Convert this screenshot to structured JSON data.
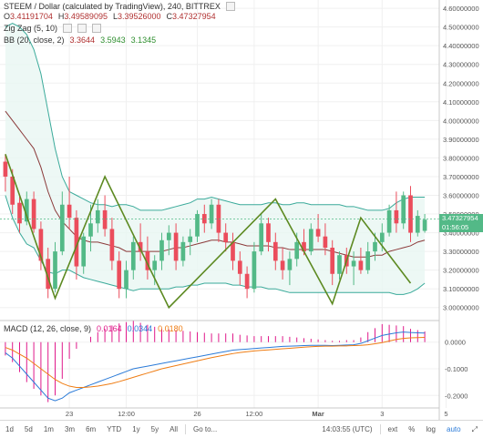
{
  "header": {
    "symbol_title": "STEEM / Dollar (calculated by TradingView), 240, BITTREX",
    "ohlc": {
      "o_label": "O",
      "o_value": "3.41191704",
      "h_label": "H",
      "h_value": "3.49589095",
      "l_label": "L",
      "l_value": "3.39526000",
      "c_label": "C",
      "c_value": "3.47327954"
    }
  },
  "indicators": {
    "zigzag": {
      "label": "Zig Zag (5, 10)"
    },
    "bb": {
      "label": "BB (20, close, 2)",
      "basis": "3.3644",
      "upper": "3.5943",
      "lower": "3.1345"
    },
    "macd": {
      "label": "MACD (12, 26, close, 9)",
      "hist": "0.0164",
      "macd": "0.0344",
      "signal": "0.0180"
    }
  },
  "price_axis": {
    "ticks": [
      "4.60000000",
      "4.50000000",
      "4.40000000",
      "4.30000000",
      "4.20000000",
      "4.10000000",
      "4.00000000",
      "3.90000000",
      "3.80000000",
      "3.70000000",
      "3.60000000",
      "3.50000000",
      "3.40000000",
      "3.30000000",
      "3.20000000",
      "3.10000000",
      "3.00000000"
    ],
    "last_price": "3.47327954",
    "countdown": "01:56:05"
  },
  "macd_axis": {
    "ticks": [
      "0.0000",
      "-0.1000",
      "-0.2000"
    ]
  },
  "time_axis": {
    "labels": [
      {
        "text": "23",
        "t": 9
      },
      {
        "text": "12:00",
        "t": 17
      },
      {
        "text": "26",
        "t": 27
      },
      {
        "text": "12:00",
        "t": 35
      },
      {
        "text": "Mar",
        "t": 44
      },
      {
        "text": "3",
        "t": 53
      },
      {
        "text": "5",
        "t": 62
      }
    ]
  },
  "toolbar": {
    "ranges": [
      "1d",
      "5d",
      "1m",
      "3m",
      "6m",
      "YTD",
      "1y",
      "5y",
      "All"
    ],
    "goto": "Go to...",
    "time": "14:03:55 (UTC)",
    "ext": "ext",
    "percent": "%",
    "log": "log",
    "auto": "auto"
  },
  "colors": {
    "up": "#53b987",
    "down": "#eb4d5c",
    "bb_band": "#3aaa9a",
    "bb_basis": "#8b3a3a",
    "bb_fill": "#e8f6f3",
    "zigzag": "#5d8a22",
    "macd": "#2b7bd8",
    "signal": "#ef7d14",
    "hist": "#e0198a"
  },
  "chart_data": {
    "type": "candlestick",
    "price_range": [
      2.95,
      4.62
    ],
    "candles": [
      [
        3.78,
        3.82,
        3.62,
        3.7
      ],
      [
        3.7,
        3.74,
        3.5,
        3.55
      ],
      [
        3.56,
        3.6,
        3.4,
        3.45
      ],
      [
        3.46,
        3.62,
        3.44,
        3.58
      ],
      [
        3.58,
        3.62,
        3.4,
        3.42
      ],
      [
        3.42,
        3.46,
        3.2,
        3.25
      ],
      [
        3.26,
        3.32,
        3.05,
        3.1
      ],
      [
        3.1,
        3.35,
        3.08,
        3.3
      ],
      [
        3.3,
        3.62,
        3.28,
        3.55
      ],
      [
        3.55,
        3.7,
        3.42,
        3.48
      ],
      [
        3.48,
        3.52,
        3.15,
        3.22
      ],
      [
        3.22,
        3.4,
        3.18,
        3.38
      ],
      [
        3.38,
        3.55,
        3.3,
        3.45
      ],
      [
        3.45,
        3.58,
        3.4,
        3.52
      ],
      [
        3.52,
        3.6,
        3.38,
        3.42
      ],
      [
        3.42,
        3.48,
        3.2,
        3.25
      ],
      [
        3.25,
        3.3,
        3.05,
        3.1
      ],
      [
        3.1,
        3.25,
        3.05,
        3.2
      ],
      [
        3.2,
        3.38,
        3.15,
        3.35
      ],
      [
        3.35,
        3.45,
        3.25,
        3.3
      ],
      [
        3.3,
        3.38,
        3.15,
        3.2
      ],
      [
        3.2,
        3.28,
        3.12,
        3.25
      ],
      [
        3.25,
        3.4,
        3.2,
        3.36
      ],
      [
        3.36,
        3.44,
        3.28,
        3.4
      ],
      [
        3.4,
        3.45,
        3.2,
        3.25
      ],
      [
        3.25,
        3.38,
        3.22,
        3.35
      ],
      [
        3.35,
        3.42,
        3.28,
        3.38
      ],
      [
        3.38,
        3.52,
        3.35,
        3.5
      ],
      [
        3.5,
        3.55,
        3.4,
        3.45
      ],
      [
        3.45,
        3.58,
        3.42,
        3.55
      ],
      [
        3.55,
        3.58,
        3.35,
        3.4
      ],
      [
        3.4,
        3.45,
        3.3,
        3.35
      ],
      [
        3.35,
        3.4,
        3.2,
        3.25
      ],
      [
        3.25,
        3.3,
        3.12,
        3.18
      ],
      [
        3.18,
        3.22,
        3.05,
        3.1
      ],
      [
        3.1,
        3.35,
        3.08,
        3.3
      ],
      [
        3.3,
        3.5,
        3.28,
        3.45
      ],
      [
        3.45,
        3.48,
        3.3,
        3.35
      ],
      [
        3.35,
        3.4,
        3.2,
        3.25
      ],
      [
        3.25,
        3.32,
        3.15,
        3.2
      ],
      [
        3.2,
        3.3,
        3.12,
        3.26
      ],
      [
        3.26,
        3.4,
        3.22,
        3.35
      ],
      [
        3.35,
        3.42,
        3.28,
        3.3
      ],
      [
        3.3,
        3.45,
        3.28,
        3.42
      ],
      [
        3.42,
        3.5,
        3.35,
        3.38
      ],
      [
        3.38,
        3.45,
        3.28,
        3.32
      ],
      [
        3.32,
        3.36,
        3.12,
        3.18
      ],
      [
        3.18,
        3.3,
        3.15,
        3.28
      ],
      [
        3.28,
        3.32,
        3.18,
        3.22
      ],
      [
        3.22,
        3.3,
        3.12,
        3.25
      ],
      [
        3.25,
        3.32,
        3.18,
        3.2
      ],
      [
        3.2,
        3.35,
        3.18,
        3.3
      ],
      [
        3.3,
        3.4,
        3.25,
        3.35
      ],
      [
        3.35,
        3.45,
        3.3,
        3.4
      ],
      [
        3.4,
        3.55,
        3.38,
        3.52
      ],
      [
        3.52,
        3.62,
        3.4,
        3.45
      ],
      [
        3.45,
        3.62,
        3.42,
        3.6
      ],
      [
        3.6,
        3.65,
        3.35,
        3.4
      ],
      [
        3.4,
        3.52,
        3.38,
        3.49
      ],
      [
        3.41,
        3.5,
        3.4,
        3.47
      ]
    ],
    "bb_upper": [
      4.5,
      4.52,
      4.5,
      4.46,
      4.38,
      4.25,
      4.05,
      3.85,
      3.7,
      3.62,
      3.6,
      3.58,
      3.56,
      3.55,
      3.55,
      3.54,
      3.55,
      3.55,
      3.54,
      3.52,
      3.52,
      3.52,
      3.52,
      3.53,
      3.54,
      3.55,
      3.56,
      3.58,
      3.58,
      3.59,
      3.58,
      3.57,
      3.56,
      3.55,
      3.55,
      3.55,
      3.55,
      3.56,
      3.56,
      3.55,
      3.55,
      3.56,
      3.56,
      3.55,
      3.55,
      3.55,
      3.55,
      3.55,
      3.54,
      3.54,
      3.53,
      3.52,
      3.52,
      3.52,
      3.53,
      3.56,
      3.58,
      3.59,
      3.59,
      3.59
    ],
    "bb_basis": [
      4.05,
      4.0,
      3.95,
      3.9,
      3.85,
      3.75,
      3.62,
      3.52,
      3.46,
      3.42,
      3.38,
      3.36,
      3.35,
      3.35,
      3.34,
      3.33,
      3.32,
      3.3,
      3.3,
      3.3,
      3.3,
      3.3,
      3.3,
      3.31,
      3.32,
      3.32,
      3.33,
      3.34,
      3.35,
      3.36,
      3.36,
      3.35,
      3.35,
      3.34,
      3.33,
      3.33,
      3.33,
      3.33,
      3.32,
      3.32,
      3.31,
      3.31,
      3.31,
      3.31,
      3.31,
      3.31,
      3.3,
      3.29,
      3.28,
      3.27,
      3.27,
      3.27,
      3.28,
      3.28,
      3.3,
      3.31,
      3.32,
      3.33,
      3.35,
      3.36
    ],
    "bb_lower": [
      3.6,
      3.48,
      3.4,
      3.34,
      3.32,
      3.25,
      3.19,
      3.18,
      3.2,
      3.2,
      3.18,
      3.16,
      3.15,
      3.14,
      3.13,
      3.12,
      3.11,
      3.1,
      3.09,
      3.1,
      3.1,
      3.1,
      3.1,
      3.1,
      3.11,
      3.11,
      3.12,
      3.12,
      3.13,
      3.13,
      3.13,
      3.13,
      3.12,
      3.12,
      3.11,
      3.11,
      3.11,
      3.1,
      3.1,
      3.09,
      3.08,
      3.08,
      3.08,
      3.08,
      3.08,
      3.08,
      3.08,
      3.08,
      3.08,
      3.08,
      3.08,
      3.08,
      3.08,
      3.08,
      3.08,
      3.07,
      3.07,
      3.08,
      3.1,
      3.13
    ],
    "zigzag": [
      [
        0,
        3.82
      ],
      [
        7,
        3.05
      ],
      [
        14,
        3.7
      ],
      [
        23,
        3.0
      ],
      [
        38,
        3.58
      ],
      [
        46,
        3.02
      ],
      [
        50,
        3.48
      ],
      [
        57,
        3.13
      ]
    ],
    "macd_range": [
      -0.24,
      0.04
    ],
    "macd_line": [
      -0.04,
      -0.06,
      -0.09,
      -0.12,
      -0.15,
      -0.18,
      -0.21,
      -0.22,
      -0.21,
      -0.19,
      -0.18,
      -0.17,
      -0.16,
      -0.15,
      -0.14,
      -0.13,
      -0.12,
      -0.11,
      -0.1,
      -0.095,
      -0.09,
      -0.085,
      -0.08,
      -0.075,
      -0.07,
      -0.065,
      -0.06,
      -0.055,
      -0.05,
      -0.045,
      -0.04,
      -0.035,
      -0.03,
      -0.028,
      -0.026,
      -0.024,
      -0.022,
      -0.02,
      -0.018,
      -0.016,
      -0.015,
      -0.014,
      -0.013,
      -0.012,
      -0.012,
      -0.012,
      -0.013,
      -0.012,
      -0.011,
      -0.01,
      -0.005,
      0.005,
      0.015,
      0.025,
      0.03,
      0.035,
      0.038,
      0.036,
      0.035,
      0.034
    ],
    "signal_line": [
      -0.02,
      -0.03,
      -0.045,
      -0.06,
      -0.08,
      -0.1,
      -0.12,
      -0.14,
      -0.155,
      -0.165,
      -0.17,
      -0.17,
      -0.168,
      -0.165,
      -0.16,
      -0.155,
      -0.148,
      -0.14,
      -0.132,
      -0.124,
      -0.116,
      -0.108,
      -0.1,
      -0.094,
      -0.088,
      -0.082,
      -0.076,
      -0.07,
      -0.064,
      -0.058,
      -0.053,
      -0.048,
      -0.043,
      -0.039,
      -0.036,
      -0.033,
      -0.031,
      -0.029,
      -0.027,
      -0.025,
      -0.023,
      -0.021,
      -0.019,
      -0.017,
      -0.016,
      -0.015,
      -0.015,
      -0.014,
      -0.014,
      -0.013,
      -0.012,
      -0.01,
      -0.006,
      -0.002,
      0.004,
      0.01,
      0.014,
      0.016,
      0.017,
      0.018
    ],
    "ylabel": "",
    "xlabel": ""
  }
}
